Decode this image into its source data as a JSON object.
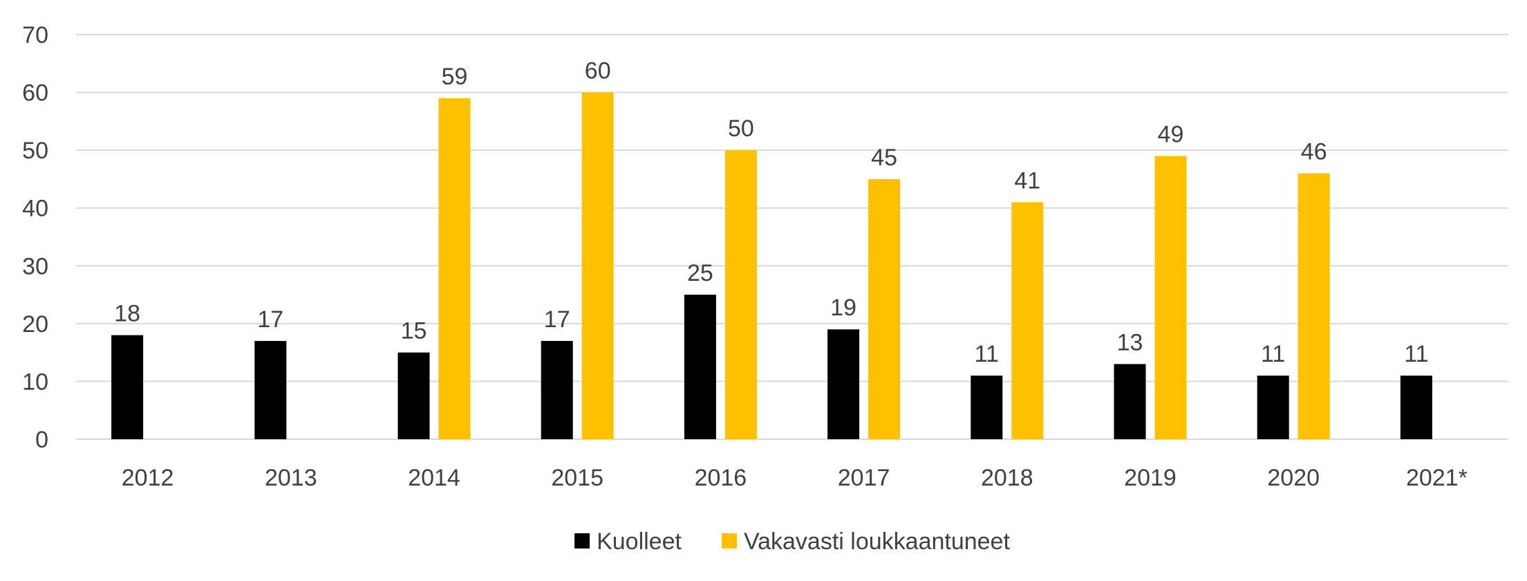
{
  "chart_data": {
    "type": "bar",
    "title": "",
    "xlabel": "",
    "ylabel": "",
    "ylim": [
      0,
      70
    ],
    "yticks": [
      0,
      10,
      20,
      30,
      40,
      50,
      60,
      70
    ],
    "grid": true,
    "legend_position": "bottom",
    "categories": [
      "2012",
      "2013",
      "2014",
      "2015",
      "2016",
      "2017",
      "2018",
      "2019",
      "2020",
      "2021*"
    ],
    "series": [
      {
        "name": "Kuolleet",
        "color": "#000000",
        "values": [
          18,
          17,
          15,
          17,
          25,
          19,
          11,
          13,
          11,
          11
        ]
      },
      {
        "name": "Vakavasti loukkaantuneet",
        "color": "#FFC000",
        "values": [
          null,
          null,
          59,
          60,
          50,
          45,
          41,
          49,
          46,
          null
        ]
      }
    ]
  }
}
